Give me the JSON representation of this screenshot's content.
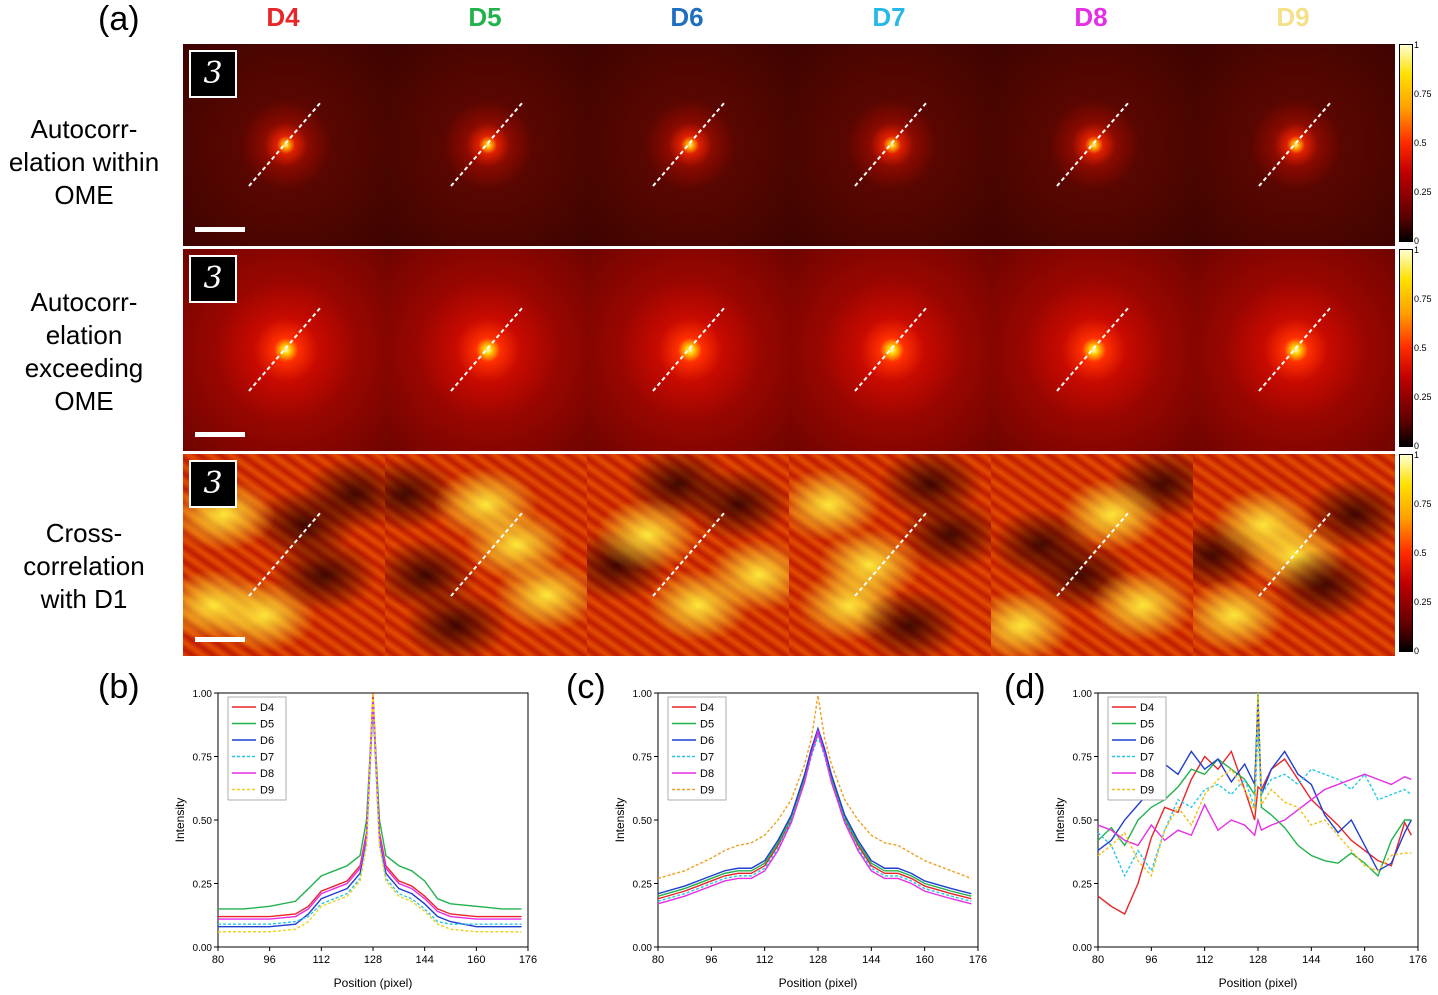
{
  "panels": {
    "a": "(a)",
    "b": "(b)",
    "c": "(c)",
    "d": "(d)"
  },
  "columns": [
    {
      "label": "D4",
      "color": "#e8262a"
    },
    {
      "label": "D5",
      "color": "#22b24c"
    },
    {
      "label": "D6",
      "color": "#1f6fc0"
    },
    {
      "label": "D7",
      "color": "#26b8e8"
    },
    {
      "label": "D8",
      "color": "#e62ee6"
    },
    {
      "label": "D9",
      "color": "#f5e08a"
    }
  ],
  "rows": [
    {
      "lines": [
        "Autocorr-",
        "elation within",
        "OME"
      ],
      "type": "auto-within"
    },
    {
      "lines": [
        "Autocorr-",
        "elation",
        "exceeding",
        "OME"
      ],
      "type": "auto-exceed"
    },
    {
      "lines": [
        "Cross-",
        "correlation",
        "with D1"
      ],
      "type": "cross"
    }
  ],
  "badge_text": "3",
  "colorbar_ticks": [
    "1",
    "0.75",
    "0.5",
    "0.25",
    "0"
  ],
  "chart_data": [
    {
      "id": "b",
      "type": "line",
      "xlabel": "Position (pixel)",
      "ylabel": "Intensity",
      "xlim": [
        80,
        176
      ],
      "ylim": [
        0,
        1
      ],
      "xticks": [
        "80",
        "96",
        "112",
        "128",
        "144",
        "160",
        "176"
      ],
      "yticks": [
        "0.00",
        "0.25",
        "0.50",
        "0.75",
        "1.00"
      ],
      "legend": "top-left",
      "x": [
        80,
        88,
        96,
        104,
        108,
        112,
        116,
        120,
        124,
        126,
        128,
        130,
        132,
        136,
        140,
        144,
        148,
        152,
        160,
        168,
        174
      ],
      "series": [
        {
          "name": "D4",
          "color": "#e8262a",
          "values": [
            0.12,
            0.12,
            0.12,
            0.13,
            0.16,
            0.22,
            0.24,
            0.26,
            0.32,
            0.45,
            1.0,
            0.45,
            0.32,
            0.26,
            0.24,
            0.2,
            0.15,
            0.13,
            0.12,
            0.12,
            0.12
          ]
        },
        {
          "name": "D5",
          "color": "#22b24c",
          "values": [
            0.15,
            0.15,
            0.16,
            0.18,
            0.23,
            0.28,
            0.3,
            0.32,
            0.36,
            0.5,
            0.97,
            0.5,
            0.36,
            0.32,
            0.3,
            0.26,
            0.19,
            0.17,
            0.16,
            0.15,
            0.15
          ]
        },
        {
          "name": "D6",
          "color": "#1f3fd0",
          "values": [
            0.08,
            0.08,
            0.08,
            0.09,
            0.13,
            0.19,
            0.21,
            0.23,
            0.29,
            0.43,
            0.96,
            0.43,
            0.29,
            0.23,
            0.21,
            0.17,
            0.12,
            0.1,
            0.08,
            0.08,
            0.08
          ]
        },
        {
          "name": "D7",
          "color": "#26c8e8",
          "values": [
            0.09,
            0.09,
            0.09,
            0.1,
            0.12,
            0.17,
            0.19,
            0.21,
            0.27,
            0.4,
            0.94,
            0.4,
            0.27,
            0.21,
            0.19,
            0.15,
            0.1,
            0.09,
            0.09,
            0.09,
            0.09
          ]
        },
        {
          "name": "D8",
          "color": "#e62ee6",
          "values": [
            0.11,
            0.11,
            0.11,
            0.12,
            0.15,
            0.21,
            0.23,
            0.25,
            0.31,
            0.44,
            0.97,
            0.44,
            0.31,
            0.25,
            0.23,
            0.19,
            0.14,
            0.12,
            0.11,
            0.11,
            0.11
          ]
        },
        {
          "name": "D9",
          "color": "#f0d020",
          "values": [
            0.06,
            0.06,
            0.06,
            0.07,
            0.1,
            0.16,
            0.18,
            0.2,
            0.26,
            0.4,
            1.0,
            0.4,
            0.26,
            0.2,
            0.18,
            0.14,
            0.09,
            0.07,
            0.06,
            0.06,
            0.06
          ]
        }
      ]
    },
    {
      "id": "c",
      "type": "line",
      "xlabel": "Position (pixel)",
      "ylabel": "Intensity",
      "xlim": [
        80,
        176
      ],
      "ylim": [
        0,
        1
      ],
      "xticks": [
        "80",
        "96",
        "112",
        "128",
        "144",
        "160",
        "176"
      ],
      "yticks": [
        "0.00",
        "0.25",
        "0.50",
        "0.75",
        "1.00"
      ],
      "legend": "top-left",
      "x": [
        80,
        88,
        96,
        100,
        104,
        108,
        112,
        116,
        120,
        124,
        126,
        128,
        130,
        132,
        136,
        140,
        144,
        148,
        152,
        156,
        160,
        168,
        174
      ],
      "series": [
        {
          "name": "D4",
          "color": "#e8262a",
          "values": [
            0.19,
            0.22,
            0.26,
            0.28,
            0.29,
            0.29,
            0.32,
            0.4,
            0.5,
            0.66,
            0.76,
            0.84,
            0.76,
            0.66,
            0.5,
            0.4,
            0.32,
            0.29,
            0.29,
            0.27,
            0.24,
            0.21,
            0.19
          ]
        },
        {
          "name": "D5",
          "color": "#22b24c",
          "values": [
            0.2,
            0.23,
            0.27,
            0.29,
            0.3,
            0.3,
            0.33,
            0.41,
            0.51,
            0.67,
            0.77,
            0.85,
            0.77,
            0.67,
            0.51,
            0.41,
            0.33,
            0.3,
            0.3,
            0.28,
            0.25,
            0.22,
            0.2
          ]
        },
        {
          "name": "D6",
          "color": "#1f3fd0",
          "values": [
            0.21,
            0.24,
            0.28,
            0.3,
            0.31,
            0.31,
            0.34,
            0.42,
            0.52,
            0.68,
            0.78,
            0.86,
            0.78,
            0.68,
            0.52,
            0.42,
            0.34,
            0.31,
            0.31,
            0.29,
            0.26,
            0.23,
            0.21
          ]
        },
        {
          "name": "D7",
          "color": "#26c8e8",
          "values": [
            0.18,
            0.21,
            0.25,
            0.27,
            0.28,
            0.28,
            0.31,
            0.39,
            0.5,
            0.65,
            0.75,
            0.83,
            0.75,
            0.65,
            0.5,
            0.39,
            0.31,
            0.28,
            0.28,
            0.26,
            0.23,
            0.2,
            0.18
          ]
        },
        {
          "name": "D8",
          "color": "#e62ee6",
          "values": [
            0.17,
            0.2,
            0.24,
            0.26,
            0.27,
            0.27,
            0.3,
            0.38,
            0.49,
            0.65,
            0.76,
            0.85,
            0.76,
            0.65,
            0.49,
            0.38,
            0.3,
            0.27,
            0.27,
            0.25,
            0.22,
            0.19,
            0.17
          ]
        },
        {
          "name": "D9",
          "color": "#f0a020",
          "values": [
            0.27,
            0.3,
            0.35,
            0.38,
            0.4,
            0.41,
            0.44,
            0.5,
            0.58,
            0.72,
            0.82,
            0.99,
            0.82,
            0.72,
            0.58,
            0.5,
            0.44,
            0.41,
            0.4,
            0.37,
            0.34,
            0.3,
            0.27
          ]
        }
      ]
    },
    {
      "id": "d",
      "type": "line",
      "xlabel": "Position (pixel)",
      "ylabel": "Intensity",
      "xlim": [
        80,
        176
      ],
      "ylim": [
        0,
        1
      ],
      "xticks": [
        "80",
        "96",
        "112",
        "128",
        "144",
        "160",
        "176"
      ],
      "yticks": [
        "0.00",
        "0.25",
        "0.50",
        "0.75",
        "1.00"
      ],
      "legend": "top-left",
      "x": [
        80,
        84,
        88,
        92,
        96,
        100,
        104,
        108,
        112,
        116,
        120,
        124,
        127,
        128,
        129,
        132,
        136,
        140,
        144,
        148,
        152,
        156,
        160,
        164,
        168,
        172,
        174
      ],
      "series": [
        {
          "name": "D4",
          "color": "#e8262a",
          "values": [
            0.2,
            0.16,
            0.13,
            0.25,
            0.43,
            0.55,
            0.53,
            0.66,
            0.75,
            0.7,
            0.77,
            0.62,
            0.5,
            0.63,
            0.62,
            0.7,
            0.74,
            0.66,
            0.58,
            0.53,
            0.48,
            0.42,
            0.38,
            0.34,
            0.32,
            0.49,
            0.44
          ]
        },
        {
          "name": "D5",
          "color": "#22b24c",
          "values": [
            0.42,
            0.47,
            0.4,
            0.5,
            0.55,
            0.58,
            0.63,
            0.7,
            0.68,
            0.74,
            0.7,
            0.66,
            0.6,
            1.0,
            0.55,
            0.52,
            0.47,
            0.4,
            0.36,
            0.34,
            0.33,
            0.37,
            0.33,
            0.28,
            0.42,
            0.5,
            0.5
          ]
        },
        {
          "name": "D6",
          "color": "#1f3fd0",
          "values": [
            0.38,
            0.42,
            0.5,
            0.56,
            0.62,
            0.72,
            0.68,
            0.77,
            0.7,
            0.74,
            0.65,
            0.72,
            0.64,
            0.96,
            0.6,
            0.7,
            0.77,
            0.68,
            0.64,
            0.52,
            0.45,
            0.5,
            0.4,
            0.3,
            0.33,
            0.45,
            0.5
          ]
        },
        {
          "name": "D7",
          "color": "#26c8e8",
          "values": [
            0.45,
            0.4,
            0.28,
            0.38,
            0.3,
            0.46,
            0.58,
            0.55,
            0.62,
            0.64,
            0.6,
            0.66,
            0.55,
            0.85,
            0.6,
            0.66,
            0.68,
            0.64,
            0.7,
            0.68,
            0.66,
            0.62,
            0.68,
            0.58,
            0.6,
            0.62,
            0.6
          ]
        },
        {
          "name": "D8",
          "color": "#e62ee6",
          "values": [
            0.48,
            0.46,
            0.42,
            0.4,
            0.48,
            0.42,
            0.46,
            0.44,
            0.56,
            0.46,
            0.5,
            0.48,
            0.44,
            0.5,
            0.46,
            0.48,
            0.5,
            0.54,
            0.58,
            0.62,
            0.64,
            0.66,
            0.68,
            0.66,
            0.64,
            0.67,
            0.66
          ]
        },
        {
          "name": "D9",
          "color": "#f0c020",
          "values": [
            0.36,
            0.4,
            0.45,
            0.34,
            0.28,
            0.46,
            0.55,
            0.48,
            0.6,
            0.66,
            0.7,
            0.62,
            0.54,
            1.0,
            0.56,
            0.62,
            0.57,
            0.55,
            0.48,
            0.5,
            0.44,
            0.38,
            0.32,
            0.3,
            0.36,
            0.37,
            0.37
          ]
        }
      ]
    }
  ]
}
